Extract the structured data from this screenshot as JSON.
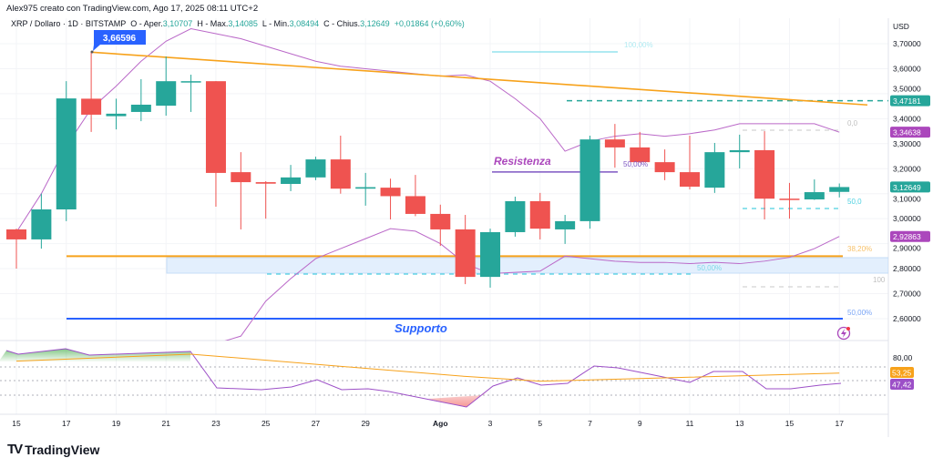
{
  "header": {
    "credit": "Alex975 creato con TradingView.com, Ago 17, 2025 08:11 UTC+2",
    "symbol": "XRP / Dollaro · 1D · BITSTAMP",
    "open_label": "O - Aper.",
    "open": "3,10707",
    "high_label": "H - Max.",
    "high": "3,14085",
    "low_label": "L - Min.",
    "low": "3,08494",
    "close_label": "C - Chius.",
    "close": "3,12649",
    "change": "+0,01864 (+0,60%)"
  },
  "price_axis": {
    "currency": "USD",
    "ticks": [
      "3,70000",
      "3,60000",
      "3,50000",
      "3,40000",
      "3,30000",
      "3,20000",
      "3,10000",
      "3,00000",
      "2,90000",
      "2,80000",
      "2,70000",
      "2,60000"
    ],
    "tick_values": [
      3.7,
      3.6,
      3.5,
      3.4,
      3.3,
      3.2,
      3.1,
      3.0,
      2.9,
      2.8,
      2.7,
      2.6
    ],
    "labels": [
      {
        "text": "3,47181",
        "value": 3.47181,
        "color": "#26a69a"
      },
      {
        "text": "3,34638",
        "value": 3.34638,
        "color": "#ab47bc"
      },
      {
        "text": "3,12649",
        "value": 3.12649,
        "color": "#26a69a"
      },
      {
        "text": "2,92863",
        "value": 2.92863,
        "color": "#ab47bc"
      }
    ]
  },
  "rsi_axis": {
    "tick": "80,00",
    "labels": [
      {
        "text": "53,25",
        "color": "#f7a21b"
      },
      {
        "text": "47,42",
        "color": "#9c4fc7"
      }
    ]
  },
  "time_axis": [
    "15",
    "17",
    "19",
    "21",
    "23",
    "25",
    "27",
    "29",
    "Ago",
    "3",
    "5",
    "7",
    "9",
    "11",
    "13",
    "15",
    "17"
  ],
  "annotations": {
    "high_callout": "3,66596",
    "resistance": "Resistenza",
    "support": "Supporto",
    "fib_100_top": "100,00%",
    "fib_50_res": "50,00%",
    "fib_0": "0,0",
    "fib_50_right": "50,0",
    "fib_382": "38,20%",
    "fib_50_band": "50,00%",
    "fib_100_right": "100",
    "fib_50_support": "50,00%"
  },
  "colors": {
    "up": "#26a69a",
    "down": "#ef5350",
    "trend": "#f7a21b",
    "band": "#ba68c8",
    "support": "#2962ff",
    "callout": "#2962ff"
  },
  "logo": "TradingView",
  "chart_data": {
    "type": "candlestick",
    "dates": [
      "Lug 15",
      "Lug 16",
      "Lug 17",
      "Lug 18",
      "Lug 19",
      "Lug 20",
      "Lug 21",
      "Lug 22",
      "Lug 23",
      "Lug 24",
      "Lug 25",
      "Lug 26",
      "Lug 27",
      "Lug 28",
      "Lug 29",
      "Lug 30",
      "Lug 31",
      "Ago 1",
      "Ago 2",
      "Ago 3",
      "Ago 4",
      "Ago 5",
      "Ago 6",
      "Ago 7",
      "Ago 8",
      "Ago 9",
      "Ago 10",
      "Ago 11",
      "Ago 12",
      "Ago 13",
      "Ago 14",
      "Ago 15",
      "Ago 16",
      "Ago 17"
    ],
    "ohlc": [
      [
        2.957,
        2.96,
        2.8,
        2.917
      ],
      [
        2.917,
        3.1,
        2.88,
        3.037
      ],
      [
        3.037,
        3.55,
        2.99,
        3.481
      ],
      [
        3.48,
        3.666,
        3.347,
        3.416
      ],
      [
        3.41,
        3.48,
        3.357,
        3.42
      ],
      [
        3.427,
        3.558,
        3.39,
        3.456
      ],
      [
        3.452,
        3.649,
        3.412,
        3.55
      ],
      [
        3.545,
        3.576,
        3.427,
        3.55
      ],
      [
        3.55,
        3.55,
        3.048,
        3.183
      ],
      [
        3.186,
        3.266,
        2.957,
        3.146
      ],
      [
        3.146,
        3.15,
        3.0,
        3.14
      ],
      [
        3.139,
        3.215,
        3.11,
        3.165
      ],
      [
        3.165,
        3.248,
        3.154,
        3.237
      ],
      [
        3.237,
        3.332,
        3.1,
        3.12
      ],
      [
        3.12,
        3.183,
        3.052,
        3.126
      ],
      [
        3.124,
        3.16,
        2.997,
        3.09
      ],
      [
        3.09,
        3.175,
        3.01,
        3.019
      ],
      [
        3.019,
        3.056,
        2.891,
        2.957
      ],
      [
        2.957,
        3.015,
        2.738,
        2.767
      ],
      [
        2.767,
        2.96,
        2.724,
        2.946
      ],
      [
        2.946,
        3.088,
        2.928,
        3.07
      ],
      [
        3.07,
        3.103,
        2.917,
        2.96
      ],
      [
        2.957,
        3.015,
        2.899,
        2.99
      ],
      [
        2.99,
        3.332,
        2.96,
        3.317
      ],
      [
        3.317,
        3.379,
        3.204,
        3.285
      ],
      [
        3.285,
        3.347,
        3.223,
        3.226
      ],
      [
        3.226,
        3.277,
        3.154,
        3.186
      ],
      [
        3.186,
        3.332,
        3.117,
        3.128
      ],
      [
        3.124,
        3.303,
        3.103,
        3.266
      ],
      [
        3.266,
        3.336,
        3.201,
        3.274
      ],
      [
        3.274,
        3.35,
        2.997,
        3.08
      ],
      [
        3.08,
        3.143,
        3.0,
        3.078
      ],
      [
        3.077,
        3.157,
        3.075,
        3.106
      ],
      [
        3.10707,
        3.14085,
        3.08494,
        3.12649
      ]
    ],
    "band_upper": [
      2.946,
      3.1,
      3.29,
      3.44,
      3.53,
      3.63,
      3.71,
      3.76,
      3.74,
      3.72,
      3.69,
      3.66,
      3.63,
      3.61,
      3.6,
      3.59,
      3.58,
      3.57,
      3.575,
      3.55,
      3.48,
      3.4,
      3.27,
      3.31,
      3.33,
      3.34,
      3.33,
      3.34,
      3.355,
      3.38,
      3.38,
      3.38,
      3.38,
      3.346
    ],
    "band_lower": [
      null,
      null,
      null,
      null,
      null,
      null,
      null,
      null,
      2.5,
      2.53,
      2.67,
      2.76,
      2.84,
      2.88,
      2.92,
      2.96,
      2.95,
      2.9,
      2.82,
      2.78,
      2.785,
      2.79,
      2.85,
      2.84,
      2.83,
      2.825,
      2.825,
      2.82,
      2.825,
      2.82,
      2.83,
      2.845,
      2.88,
      2.929
    ],
    "trendline": {
      "from": {
        "date": "Lug 18",
        "price": 3.666
      },
      "to": {
        "date": "Ago 18",
        "price": 3.455
      }
    },
    "levels": {
      "resistance": 3.187,
      "support": 2.6,
      "fib_382": 2.85,
      "dashed_green": 3.47181
    },
    "rsi": [
      93,
      88,
      96,
      86.5,
      92,
      null,
      null,
      null,
      40,
      37,
      41,
      51,
      37,
      38,
      34,
      null,
      null,
      12,
      42,
      54,
      43.5,
      46,
      71,
      68,
      58,
      47,
      63,
      63,
      38,
      38,
      43.5,
      47.42
    ],
    "rsi_dates_index": [
      0,
      0.5,
      2,
      3,
      7,
      null,
      null,
      null,
      8,
      10,
      11,
      12,
      13,
      14,
      15,
      null,
      null,
      18,
      19,
      20,
      21,
      22,
      23,
      24,
      25,
      27,
      28,
      29,
      30,
      31,
      32,
      33
    ],
    "rsi_ma": [
      [
        0,
        77
      ],
      [
        7,
        91
      ],
      [
        18,
        46.5
      ],
      [
        21,
        37
      ],
      [
        23,
        39.5
      ],
      [
        27,
        45
      ],
      [
        33,
        53.25
      ]
    ]
  }
}
